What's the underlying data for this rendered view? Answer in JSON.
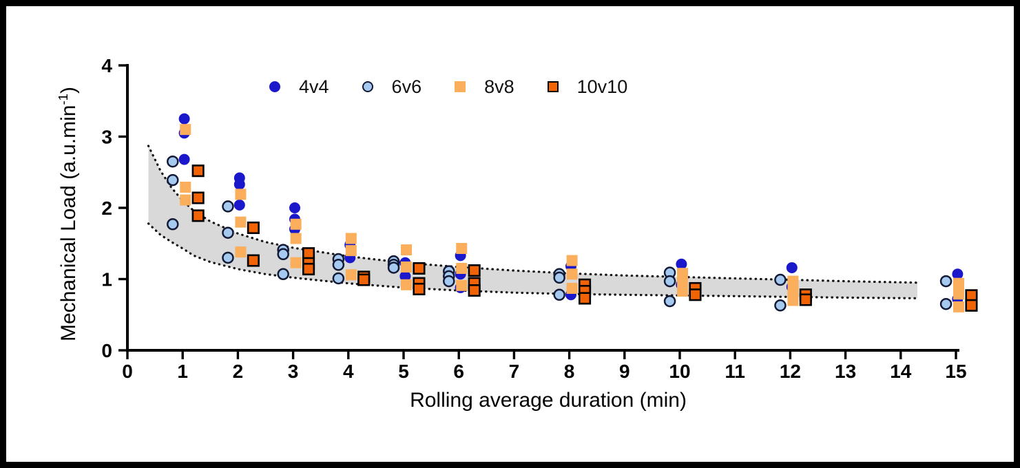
{
  "x_axis": {
    "title": "Rolling average duration (min)"
  },
  "y_axis": {
    "title_main": "Mechanical Load (a.u.min",
    "title_sup": "-1",
    "title_close": ")"
  },
  "legend": {
    "items": [
      {
        "label": "4v4"
      },
      {
        "label": "6v6"
      },
      {
        "label": "8v8"
      },
      {
        "label": "10v10"
      }
    ]
  },
  "colors": {
    "frame": "#000000",
    "background": "#ffffff",
    "text": "#000000",
    "band": "#d9d9d9",
    "band_edge": "#141414",
    "series_4v4": "#1b18cb",
    "series_6v6_fill": "#a6c9f0",
    "series_6v6_stroke": "#131a35",
    "series_8v8": "#fbae5b",
    "series_10v10_fill": "#f16304",
    "series_10v10_stroke": "#000000"
  },
  "chart_data": {
    "type": "scatter",
    "title": "",
    "xlabel": "Rolling average duration (min)",
    "ylabel": "Mechanical Load (a.u.min-1)",
    "xlim": [
      0,
      15
    ],
    "ylim": [
      0,
      4
    ],
    "x_ticks": [
      0,
      1,
      2,
      3,
      4,
      5,
      6,
      7,
      8,
      9,
      10,
      11,
      12,
      13,
      14,
      15
    ],
    "y_ticks": [
      0,
      1,
      2,
      3,
      4
    ],
    "grid": false,
    "legend_position": "top",
    "series": [
      {
        "name": "4v4",
        "marker": "circle",
        "fill": "#1b18cb",
        "stroke": "none",
        "stroke_width": 0,
        "x_offset": 0.03,
        "points": [
          [
            1,
            3.25
          ],
          [
            1,
            3.05
          ],
          [
            1,
            2.68
          ],
          [
            2,
            2.42
          ],
          [
            2,
            2.33
          ],
          [
            2,
            2.04
          ],
          [
            3,
            2.0
          ],
          [
            3,
            1.84
          ],
          [
            3,
            1.7
          ],
          [
            4,
            1.48
          ],
          [
            4,
            1.3
          ],
          [
            5,
            1.23
          ],
          [
            5,
            1.04
          ],
          [
            6,
            1.33
          ],
          [
            6,
            1.07
          ],
          [
            6,
            0.88
          ],
          [
            8,
            1.18
          ],
          [
            8,
            0.78
          ],
          [
            10,
            1.21
          ],
          [
            10,
            0.92
          ],
          [
            12,
            1.16
          ],
          [
            12,
            0.89
          ],
          [
            15,
            1.07
          ],
          [
            15,
            0.72
          ]
        ]
      },
      {
        "name": "6v6",
        "marker": "circle",
        "fill": "#a6c9f0",
        "stroke": "#131a35",
        "stroke_width": 2.5,
        "x_offset": -0.18,
        "points": [
          [
            1,
            2.65
          ],
          [
            1,
            2.39
          ],
          [
            1,
            1.77
          ],
          [
            2,
            2.02
          ],
          [
            2,
            1.65
          ],
          [
            2,
            1.3
          ],
          [
            3,
            1.41
          ],
          [
            3,
            1.35
          ],
          [
            3,
            1.07
          ],
          [
            4,
            1.28
          ],
          [
            4,
            1.2
          ],
          [
            4,
            1.01
          ],
          [
            5,
            1.25
          ],
          [
            5,
            1.2
          ],
          [
            5,
            1.16
          ],
          [
            6,
            1.11
          ],
          [
            6,
            1.04
          ],
          [
            6,
            0.97
          ],
          [
            8,
            1.07
          ],
          [
            8,
            1.02
          ],
          [
            8,
            0.78
          ],
          [
            10,
            1.09
          ],
          [
            10,
            0.97
          ],
          [
            10,
            0.69
          ],
          [
            12,
            0.99
          ],
          [
            12,
            0.63
          ],
          [
            15,
            0.97
          ],
          [
            15,
            0.65
          ]
        ]
      },
      {
        "name": "8v8",
        "marker": "square",
        "fill": "#fbae5b",
        "stroke": "none",
        "stroke_width": 0,
        "x_offset": 0.05,
        "points": [
          [
            1,
            3.1
          ],
          [
            1,
            2.29
          ],
          [
            1,
            2.11
          ],
          [
            2,
            2.19
          ],
          [
            2,
            1.8
          ],
          [
            2,
            1.38
          ],
          [
            3,
            1.77
          ],
          [
            3,
            1.57
          ],
          [
            3,
            1.23
          ],
          [
            4,
            1.57
          ],
          [
            4,
            1.4
          ],
          [
            4,
            1.06
          ],
          [
            5,
            1.41
          ],
          [
            5,
            1.17
          ],
          [
            5,
            0.92
          ],
          [
            6,
            1.43
          ],
          [
            6,
            1.15
          ],
          [
            6,
            0.91
          ],
          [
            8,
            1.26
          ],
          [
            8,
            1.07
          ],
          [
            8,
            0.87
          ],
          [
            10,
            1.08
          ],
          [
            10,
            0.96
          ],
          [
            10,
            0.83
          ],
          [
            12,
            0.97
          ],
          [
            12,
            0.82
          ],
          [
            12,
            0.7
          ],
          [
            15,
            0.94
          ],
          [
            15,
            0.79
          ],
          [
            15,
            0.61
          ]
        ]
      },
      {
        "name": "10v10",
        "marker": "square",
        "fill": "#f16304",
        "stroke": "#000000",
        "stroke_width": 2.6,
        "x_offset": 0.28,
        "points": [
          [
            1,
            2.52
          ],
          [
            1,
            2.14
          ],
          [
            1,
            1.89
          ],
          [
            2,
            1.72
          ],
          [
            2,
            1.26
          ],
          [
            3,
            1.36
          ],
          [
            3,
            1.22
          ],
          [
            3,
            1.14
          ],
          [
            4,
            1.03
          ],
          [
            4,
            0.99
          ],
          [
            5,
            1.15
          ],
          [
            5,
            0.94
          ],
          [
            5,
            0.86
          ],
          [
            6,
            1.12
          ],
          [
            6,
            0.94
          ],
          [
            6,
            0.84
          ],
          [
            8,
            0.92
          ],
          [
            8,
            0.83
          ],
          [
            8,
            0.73
          ],
          [
            10,
            0.87
          ],
          [
            10,
            0.78
          ],
          [
            12,
            0.78
          ],
          [
            12,
            0.71
          ],
          [
            15,
            0.77
          ],
          [
            15,
            0.63
          ]
        ]
      }
    ],
    "band": {
      "fill": "#d9d9d9",
      "edge_color": "#141414",
      "edge_style": "dotted",
      "points": [
        {
          "x": 0.38,
          "top": 2.87,
          "bottom": 1.78
        },
        {
          "x": 0.6,
          "top": 2.52,
          "bottom": 1.62
        },
        {
          "x": 0.8,
          "top": 2.28,
          "bottom": 1.52
        },
        {
          "x": 1.0,
          "top": 2.1,
          "bottom": 1.43
        },
        {
          "x": 1.2,
          "top": 1.96,
          "bottom": 1.33
        },
        {
          "x": 1.5,
          "top": 1.81,
          "bottom": 1.24
        },
        {
          "x": 2.0,
          "top": 1.64,
          "bottom": 1.14
        },
        {
          "x": 2.5,
          "top": 1.52,
          "bottom": 1.07
        },
        {
          "x": 3.0,
          "top": 1.44,
          "bottom": 1.02
        },
        {
          "x": 3.5,
          "top": 1.38,
          "bottom": 0.98
        },
        {
          "x": 4.0,
          "top": 1.32,
          "bottom": 0.94
        },
        {
          "x": 5.0,
          "top": 1.23,
          "bottom": 0.88
        },
        {
          "x": 6.0,
          "top": 1.17,
          "bottom": 0.84
        },
        {
          "x": 7.0,
          "top": 1.12,
          "bottom": 0.81
        },
        {
          "x": 8.0,
          "top": 1.08,
          "bottom": 0.79
        },
        {
          "x": 9.0,
          "top": 1.05,
          "bottom": 0.78
        },
        {
          "x": 10.0,
          "top": 1.03,
          "bottom": 0.77
        },
        {
          "x": 11.0,
          "top": 1.01,
          "bottom": 0.76
        },
        {
          "x": 12.0,
          "top": 0.99,
          "bottom": 0.75
        },
        {
          "x": 13.0,
          "top": 0.97,
          "bottom": 0.74
        },
        {
          "x": 14.3,
          "top": 0.95,
          "bottom": 0.73
        }
      ]
    }
  }
}
